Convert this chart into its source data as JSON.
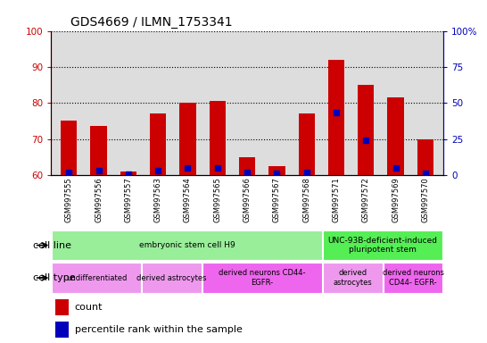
{
  "title": "GDS4669 / ILMN_1753341",
  "samples": [
    "GSM997555",
    "GSM997556",
    "GSM997557",
    "GSM997563",
    "GSM997564",
    "GSM997565",
    "GSM997566",
    "GSM997567",
    "GSM997568",
    "GSM997571",
    "GSM997572",
    "GSM997569",
    "GSM997570"
  ],
  "count_values": [
    75,
    73.5,
    61,
    77,
    80,
    80.5,
    65,
    62.5,
    77,
    92,
    85,
    81.5,
    70
  ],
  "percentile_values": [
    2,
    3,
    0.5,
    3,
    5,
    5,
    1.5,
    1,
    2,
    43,
    24,
    5,
    1
  ],
  "ylim_left": [
    60,
    100
  ],
  "ylim_right": [
    0,
    100
  ],
  "yticks_left": [
    60,
    70,
    80,
    90,
    100
  ],
  "yticks_right": [
    0,
    25,
    50,
    75,
    100
  ],
  "ytick_labels_right": [
    "0",
    "25",
    "50",
    "75",
    "100%"
  ],
  "bar_color": "#CC0000",
  "dot_color": "#0000BB",
  "grid_color": "#000000",
  "cell_line_groups": [
    {
      "label": "embryonic stem cell H9",
      "start": 0,
      "end": 9,
      "color": "#99EE99"
    },
    {
      "label": "UNC-93B-deficient-induced\npluripotent stem",
      "start": 9,
      "end": 13,
      "color": "#55EE55"
    }
  ],
  "cell_type_groups": [
    {
      "label": "undifferentiated",
      "start": 0,
      "end": 3,
      "color": "#EE99EE"
    },
    {
      "label": "derived astrocytes",
      "start": 3,
      "end": 5,
      "color": "#EE99EE"
    },
    {
      "label": "derived neurons CD44-\nEGFR-",
      "start": 5,
      "end": 9,
      "color": "#EE66EE"
    },
    {
      "label": "derived\nastrocytes",
      "start": 9,
      "end": 11,
      "color": "#EE99EE"
    },
    {
      "label": "derived neurons\nCD44- EGFR-",
      "start": 11,
      "end": 13,
      "color": "#EE66EE"
    }
  ],
  "title_fontsize": 10,
  "tick_color_left": "#CC0000",
  "tick_color_right": "#0000BB",
  "bar_width": 0.55,
  "base_value": 60
}
